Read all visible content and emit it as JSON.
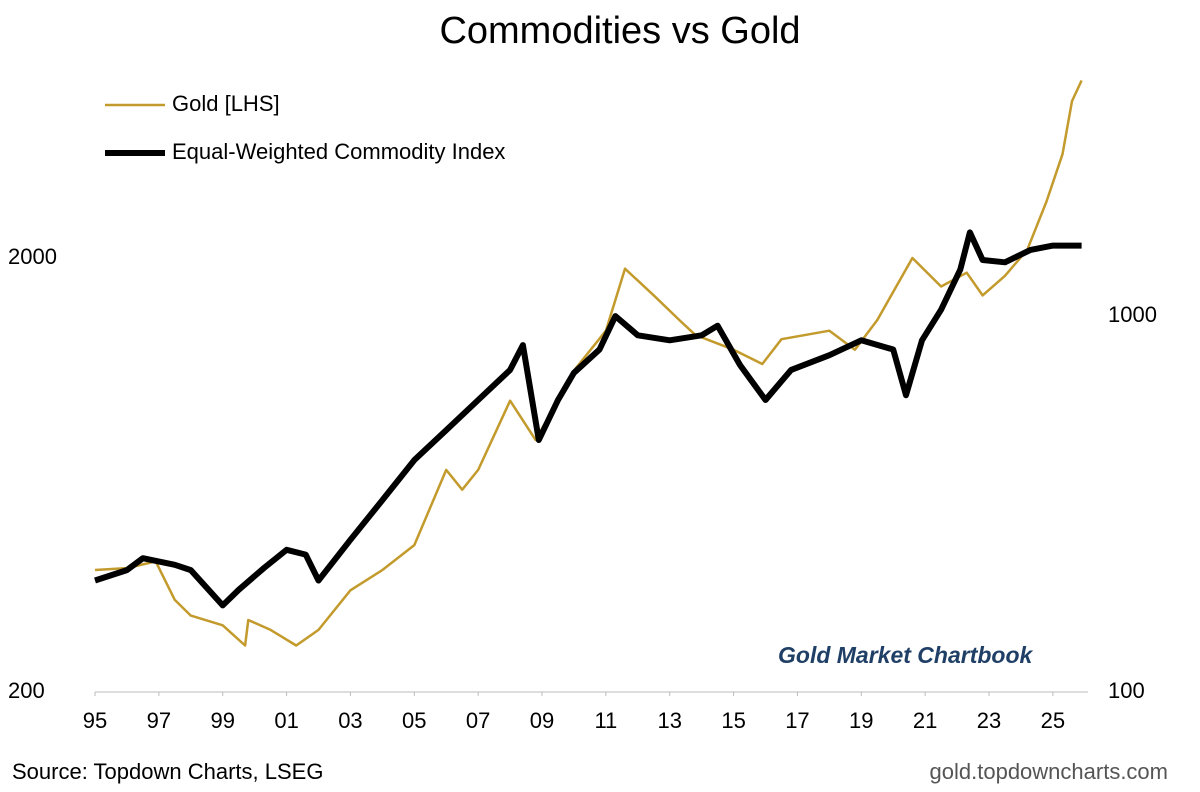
{
  "chart_data": {
    "type": "line",
    "title": "Commodities vs Gold",
    "x": [
      1995.0,
      1996.0,
      1996.9,
      1997.5,
      1998.0,
      1999.0,
      1999.7,
      1999.8,
      2000.5,
      2001.3,
      2002.0,
      2003.0,
      2004.0,
      2005.0,
      2006.0,
      2006.5,
      2007.0,
      2008.0,
      2008.8,
      2009.5,
      2010.0,
      2011.0,
      2011.6,
      2012.5,
      2013.3,
      2013.8,
      2015.0,
      2015.9,
      2016.5,
      2018.0,
      2018.8,
      2019.5,
      2020.6,
      2021.5,
      2022.3,
      2022.8,
      2023.5,
      2024.2,
      2024.8,
      2025.3,
      2025.6,
      2025.9
    ],
    "series": [
      {
        "name": "Gold [LHS]",
        "color": "#c39a2c",
        "x": [
          1995.0,
          1996.0,
          1996.9,
          1997.5,
          1998.0,
          1999.0,
          1999.7,
          1999.8,
          2000.5,
          2001.3,
          2002.0,
          2003.0,
          2004.0,
          2005.0,
          2006.0,
          2006.5,
          2007.0,
          2008.0,
          2008.8,
          2009.5,
          2010.0,
          2011.0,
          2011.6,
          2012.5,
          2013.3,
          2013.8,
          2015.0,
          2015.9,
          2016.5,
          2018.0,
          2018.8,
          2019.5,
          2020.6,
          2021.5,
          2022.3,
          2022.8,
          2023.5,
          2024.2,
          2024.8,
          2025.3,
          2025.6,
          2025.9
        ],
        "values": [
          382,
          386,
          400,
          326,
          300,
          285,
          256,
          293,
          278,
          256,
          278,
          343,
          382,
          436,
          650,
          585,
          650,
          938,
          762,
          938,
          1100,
          1360,
          1890,
          1640,
          1440,
          1330,
          1230,
          1140,
          1300,
          1360,
          1230,
          1440,
          2000,
          1720,
          1850,
          1640,
          1820,
          2090,
          2700,
          3470,
          4600,
          5130
        ]
      },
      {
        "name": "Equal-Weighted Commodity Index",
        "color": "#000000",
        "axis": "y2",
        "x": [
          1995.0,
          1996.0,
          1996.5,
          1997.5,
          1998.0,
          1999.0,
          1999.5,
          2000.3,
          2001.0,
          2001.6,
          2002.0,
          2003.0,
          2004.0,
          2005.0,
          2006.0,
          2007.0,
          2008.0,
          2008.4,
          2008.9,
          2009.5,
          2010.0,
          2010.8,
          2011.3,
          2012.0,
          2013.0,
          2014.0,
          2014.5,
          2015.2,
          2016.0,
          2016.8,
          2018.0,
          2019.0,
          2020.0,
          2020.4,
          2020.9,
          2021.5,
          2022.1,
          2022.4,
          2022.8,
          2023.5,
          2024.3,
          2025.0,
          2025.9
        ],
        "values": [
          198,
          211,
          227,
          218,
          211,
          170,
          187,
          214,
          239,
          232,
          198,
          254,
          324,
          414,
          497,
          598,
          719,
          837,
          468,
          598,
          706,
          815,
          1000,
          889,
          862,
          889,
          943,
          741,
          598,
          719,
          787,
          862,
          815,
          616,
          862,
          1040,
          1330,
          1670,
          1410,
          1390,
          1500,
          1540,
          1540
        ]
      }
    ],
    "xlim": [
      1995,
      2026.1
    ],
    "xticks": [
      {
        "value": 1995,
        "label": "95"
      },
      {
        "value": 1997,
        "label": "97"
      },
      {
        "value": 1999,
        "label": "99"
      },
      {
        "value": 2001,
        "label": "01"
      },
      {
        "value": 2003,
        "label": "03"
      },
      {
        "value": 2005,
        "label": "05"
      },
      {
        "value": 2007,
        "label": "07"
      },
      {
        "value": 2009,
        "label": "09"
      },
      {
        "value": 2011,
        "label": "11"
      },
      {
        "value": 2013,
        "label": "13"
      },
      {
        "value": 2015,
        "label": "15"
      },
      {
        "value": 2017,
        "label": "17"
      },
      {
        "value": 2019,
        "label": "19"
      },
      {
        "value": 2021,
        "label": "21"
      },
      {
        "value": 2023,
        "label": "23"
      },
      {
        "value": 2025,
        "label": "25"
      }
    ],
    "ylim": [
      200,
      5720
    ],
    "yticks": [
      200,
      2000
    ],
    "y2lim": [
      100,
      4800
    ],
    "y2ticks": [
      100,
      1000
    ],
    "log_scale": true,
    "grid": false,
    "annotation": "Gold Market Chartbook",
    "source": "Source: Topdown Charts, LSEG",
    "website": "gold.topdowncharts.com"
  }
}
